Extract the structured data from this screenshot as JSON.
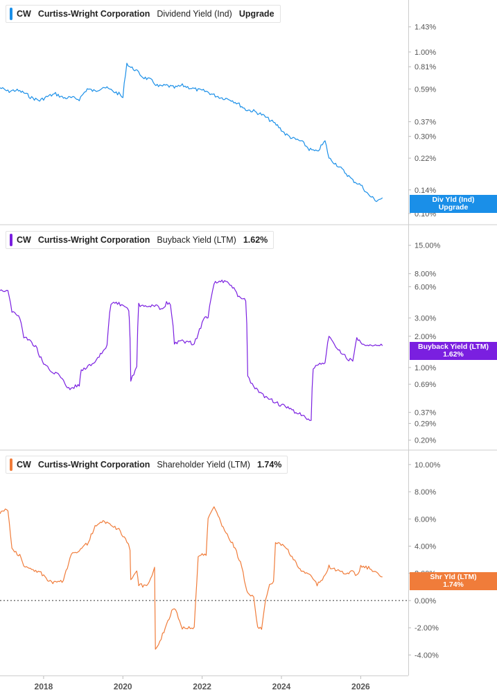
{
  "chart_data": [
    {
      "type": "line",
      "ticker": "CW",
      "company": "Curtiss-Wright Corporation",
      "metric": "Dividend Yield (Ind)",
      "value_label": "Upgrade",
      "badge_lines": [
        "Div Yld (Ind)",
        "Upgrade"
      ],
      "color": "#1a8fe8",
      "scale": "log",
      "ylim": [
        0.095,
        1.9
      ],
      "y_ticks": [
        "1.43%",
        "1.00%",
        "0.81%",
        "0.59%",
        "0.37%",
        "0.30%",
        "0.22%",
        "0.14%",
        "0.10%"
      ],
      "y_tick_values": [
        1.43,
        1.0,
        0.81,
        0.59,
        0.37,
        0.3,
        0.22,
        0.14,
        0.1
      ],
      "series": [
        {
          "x": [
            2016.9,
            2017.1,
            2017.3,
            2017.5,
            2017.7,
            2017.9,
            2018.1,
            2018.3,
            2018.5,
            2018.7,
            2018.9,
            2019.1,
            2019.3,
            2019.5,
            2019.7,
            2019.9,
            2020.0,
            2020.1,
            2020.2,
            2020.3,
            2020.5,
            2020.7,
            2020.9,
            2021.1,
            2021.3,
            2021.5,
            2021.7,
            2021.9,
            2022.1,
            2022.3,
            2022.5,
            2022.7,
            2022.9,
            2023.1,
            2023.3,
            2023.5,
            2023.7,
            2023.9,
            2024.1,
            2024.3,
            2024.5,
            2024.7,
            2024.9,
            2025.0,
            2025.1,
            2025.2,
            2025.4,
            2025.6,
            2025.8,
            2026.0,
            2026.2,
            2026.4,
            2026.55
          ],
          "y": [
            0.6,
            0.57,
            0.58,
            0.56,
            0.52,
            0.5,
            0.53,
            0.55,
            0.52,
            0.52,
            0.51,
            0.59,
            0.57,
            0.61,
            0.58,
            0.55,
            0.52,
            0.85,
            0.8,
            0.78,
            0.7,
            0.67,
            0.61,
            0.62,
            0.6,
            0.62,
            0.6,
            0.58,
            0.57,
            0.54,
            0.52,
            0.51,
            0.48,
            0.44,
            0.43,
            0.41,
            0.38,
            0.35,
            0.31,
            0.29,
            0.28,
            0.25,
            0.24,
            0.26,
            0.28,
            0.22,
            0.2,
            0.18,
            0.16,
            0.15,
            0.13,
            0.12,
            0.125
          ]
        }
      ]
    },
    {
      "type": "line",
      "ticker": "CW",
      "company": "Curtiss-Wright Corporation",
      "metric": "Buyback Yield (LTM)",
      "value_label": "1.62%",
      "badge_lines": [
        "Buyback Yield (LTM)",
        "1.62%"
      ],
      "color": "#7a1fe0",
      "scale": "log",
      "ylim": [
        0.19,
        20
      ],
      "y_ticks": [
        "15.00%",
        "8.00%",
        "6.00%",
        "3.00%",
        "2.00%",
        "1.00%",
        "0.69%",
        "0.37%",
        "0.29%",
        "0.20%"
      ],
      "y_tick_values": [
        15.0,
        8.0,
        6.0,
        3.0,
        2.0,
        1.0,
        0.69,
        0.37,
        0.29,
        0.2
      ],
      "series": [
        {
          "x": [
            2016.9,
            2017.1,
            2017.2,
            2017.4,
            2017.5,
            2017.8,
            2017.9,
            2018.0,
            2018.1,
            2018.2,
            2018.4,
            2018.6,
            2018.7,
            2018.8,
            2018.9,
            2018.95,
            2019.3,
            2019.6,
            2019.7,
            2019.9,
            2020.15,
            2020.16,
            2020.2,
            2020.35,
            2020.4,
            2020.6,
            2020.8,
            2021.0,
            2021.1,
            2021.2,
            2021.3,
            2021.5,
            2021.8,
            2021.9,
            2022.1,
            2022.15,
            2022.3,
            2022.5,
            2022.7,
            2022.8,
            2022.9,
            2023.0,
            2023.1,
            2023.15,
            2023.3,
            2023.5,
            2023.9,
            2024.2,
            2024.5,
            2024.75,
            2024.8,
            2024.9,
            2025.1,
            2025.2,
            2025.4,
            2025.7,
            2025.8,
            2025.9,
            2026.0,
            2026.3,
            2026.55
          ],
          "y": [
            5.6,
            5.5,
            3.5,
            3.0,
            2.0,
            1.6,
            1.3,
            1.1,
            1.0,
            0.9,
            0.85,
            0.65,
            0.62,
            0.66,
            0.68,
            0.95,
            1.1,
            1.6,
            4.2,
            4.1,
            3.5,
            3.0,
            0.75,
            1.0,
            4.0,
            3.8,
            4.0,
            3.6,
            4.2,
            4.0,
            1.7,
            1.8,
            1.7,
            2.1,
            3.2,
            3.0,
            6.5,
            6.8,
            6.3,
            5.8,
            4.8,
            4.6,
            4.5,
            0.8,
            0.65,
            0.55,
            0.45,
            0.4,
            0.35,
            0.3,
            1.0,
            1.05,
            1.1,
            2.0,
            1.5,
            1.2,
            1.15,
            1.9,
            1.75,
            1.6,
            1.62
          ]
        }
      ]
    },
    {
      "type": "line",
      "ticker": "CW",
      "company": "Curtiss-Wright Corporation",
      "metric": "Shareholder Yield (LTM)",
      "value_label": "1.74%",
      "badge_lines": [
        "Shr Yld (LTM)",
        "1.74%"
      ],
      "color": "#f07c3a",
      "scale": "linear",
      "ylim": [
        -5,
        10.5
      ],
      "zero_line": true,
      "y_ticks": [
        "10.00%",
        "8.00%",
        "6.00%",
        "4.00%",
        "2.00%",
        "0.00%",
        "-2.00%",
        "-4.00%"
      ],
      "y_tick_values": [
        10,
        8,
        6,
        4,
        2,
        0,
        -2,
        -4
      ],
      "series": [
        {
          "x": [
            2016.9,
            2017.1,
            2017.2,
            2017.4,
            2017.5,
            2017.8,
            2018.0,
            2018.1,
            2018.2,
            2018.5,
            2018.7,
            2018.9,
            2019.1,
            2019.3,
            2019.5,
            2019.7,
            2019.9,
            2020.1,
            2020.18,
            2020.2,
            2020.35,
            2020.4,
            2020.6,
            2020.8,
            2020.82,
            2020.9,
            2021.0,
            2021.2,
            2021.3,
            2021.5,
            2021.8,
            2021.9,
            2022.0,
            2022.1,
            2022.15,
            2022.3,
            2022.5,
            2022.6,
            2022.8,
            2022.9,
            2023.0,
            2023.1,
            2023.15,
            2023.3,
            2023.4,
            2023.5,
            2023.6,
            2023.7,
            2023.8,
            2023.85,
            2024.1,
            2024.3,
            2024.5,
            2024.7,
            2024.9,
            2025.0,
            2025.2,
            2025.4,
            2025.6,
            2025.8,
            2025.9,
            2026.0,
            2026.2,
            2026.4,
            2026.55
          ],
          "y": [
            6.5,
            6.7,
            3.8,
            3.3,
            2.5,
            2.2,
            1.9,
            1.5,
            1.3,
            1.4,
            3.5,
            3.7,
            4.2,
            5.4,
            5.8,
            5.6,
            5.2,
            4.3,
            3.8,
            1.5,
            2.2,
            1.2,
            1.0,
            2.4,
            -3.7,
            -3.3,
            -2.5,
            -1.0,
            -0.5,
            -2.0,
            -2.0,
            3.3,
            3.5,
            3.3,
            6.0,
            7.0,
            5.5,
            5.0,
            4.0,
            3.3,
            2.5,
            1.0,
            0.5,
            0.2,
            -2.0,
            -2.0,
            0.1,
            1.3,
            1.3,
            4.2,
            4.0,
            3.0,
            2.2,
            2.0,
            1.2,
            1.4,
            2.5,
            2.2,
            2.0,
            2.1,
            1.8,
            2.5,
            2.4,
            2.0,
            1.74
          ]
        }
      ]
    }
  ],
  "x_axis": {
    "tick_labels": [
      "2018",
      "2020",
      "2022",
      "2024",
      "2026"
    ],
    "tick_values": [
      2018,
      2020,
      2022,
      2024,
      2026
    ],
    "range": [
      2016.9,
      2027.2
    ]
  },
  "colors": {
    "grid": "#e6e6e6",
    "axis_text": "#555555",
    "divider": "#cccccc"
  }
}
